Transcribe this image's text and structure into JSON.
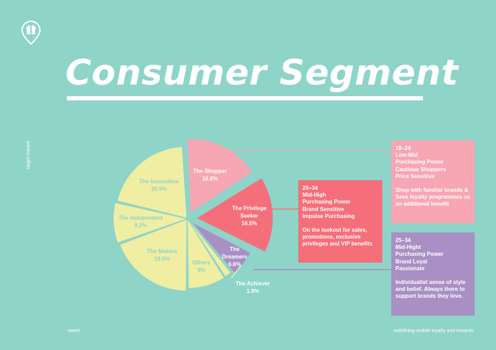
{
  "title": "Consumer Segment",
  "side_label": "target market",
  "footer": {
    "left": "swee!",
    "right": "redefining mobile loyalty and rewards"
  },
  "colors": {
    "background": "#8ed4c8",
    "insensitive": "#f0eea3",
    "shopper": "#f7a6b3",
    "privilege": "#f56f7a",
    "dreamers": "#a98fc4",
    "achiever": "#f0eea3",
    "pie_label": "#8ed4c8"
  },
  "chart_data": {
    "type": "pie",
    "title": "",
    "slices": [
      {
        "key": "shopper",
        "label": "The Shopper",
        "value": 16.8,
        "display": "16.8%"
      },
      {
        "key": "privilege",
        "label": "The Privilege Seeker",
        "label_lines": [
          "The Privilege",
          "Seeker"
        ],
        "value": 16.5,
        "display": "16.5%"
      },
      {
        "key": "dreamers",
        "label": "The Dreamers",
        "label_lines": [
          "The",
          "Dreamers"
        ],
        "value": 6.6,
        "display": "6.6%"
      },
      {
        "key": "achiever",
        "label": "The Achiever",
        "value": 1.9,
        "display": "1.9%"
      },
      {
        "key": "others",
        "label": "Others",
        "value": 9,
        "display": "9%"
      },
      {
        "key": "makers",
        "label": "The Makers",
        "value": 19.5,
        "display": "19.5%"
      },
      {
        "key": "independent",
        "label": "The Independent",
        "value": 9.2,
        "display": "9.2%"
      },
      {
        "key": "insensitive",
        "label": "The Insensitive",
        "value": 20.5,
        "display": "20.5%"
      }
    ]
  },
  "segments": {
    "shopper": {
      "lines": [
        "18–24",
        "Low-Mid",
        "Purchasing Power",
        "Cautious Shoppers",
        "Price Sensitive"
      ],
      "desc": "Shop with familiar brands & Sees loyalty programmes as an additional benefit"
    },
    "privilege": {
      "lines": [
        "25–34",
        "Mid-High",
        "Purchasing Power",
        "Brand Sensitive",
        "Impulse Purchasing"
      ],
      "desc": "On the lookout for sales, promotions, exclusive privileges and VIP benefits"
    },
    "dreamers": {
      "lines": [
        "25–34",
        "Mid-Hight",
        "Purchasing Power",
        "Brand Loyal",
        "Passionate"
      ],
      "desc": "Individualist sense of style and belief. Always there to support brands they love."
    }
  }
}
